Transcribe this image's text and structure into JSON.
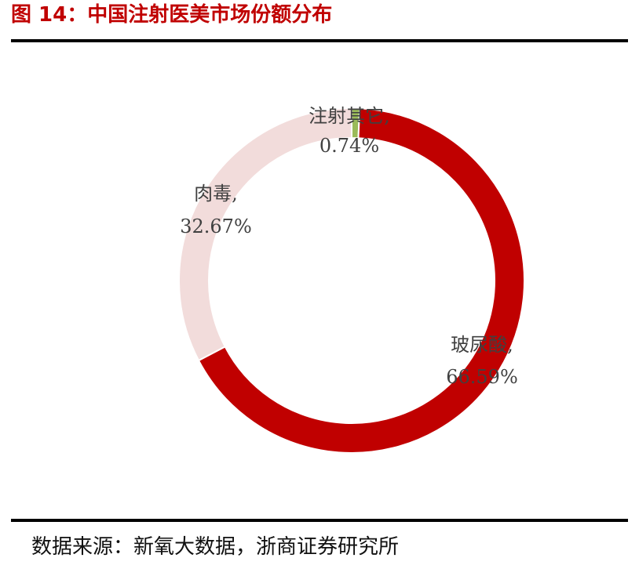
{
  "figure": {
    "title": "图 14：中国注射医美市场份额分布",
    "source": "数据来源：新氧大数据，浙商证券研究所"
  },
  "chart_data": {
    "type": "pie",
    "style": "donut",
    "categories": [
      "注射其它",
      "玻尿酸",
      "肉毒"
    ],
    "values": [
      0.74,
      66.59,
      32.67
    ],
    "unit": "%",
    "labels": [
      {
        "name": "注射其它,",
        "value": "0.74%"
      },
      {
        "name": "玻尿酸,",
        "value": "66.59%"
      },
      {
        "name": "肉毒,",
        "value": "32.67%"
      }
    ],
    "colors": [
      "#9bbb59",
      "#c00000",
      "#f2dcdb"
    ],
    "legend": "none"
  }
}
